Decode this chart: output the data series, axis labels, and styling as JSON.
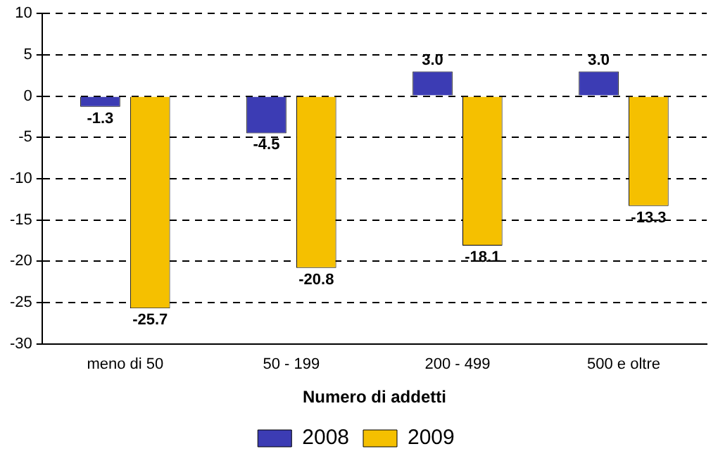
{
  "chart_data": {
    "type": "bar",
    "xlabel": "Numero di addetti",
    "categories": [
      "meno di 50",
      "50 - 199",
      "200 - 499",
      "500 e oltre"
    ],
    "series": [
      {
        "name": "2008",
        "color": "#3c3cb4",
        "values": [
          -1.3,
          -4.5,
          3.0,
          3.0
        ],
        "value_labels": [
          "-1.3",
          "-4.5",
          "3.0",
          "3.0"
        ]
      },
      {
        "name": "2009",
        "color": "#f5c000",
        "values": [
          -25.7,
          -20.8,
          -18.1,
          -13.3
        ],
        "value_labels": [
          "-25.7",
          "-20.8",
          "-18.1",
          "-13.3"
        ]
      }
    ],
    "ylim": [
      -30,
      10
    ],
    "yticks": [
      -30,
      -25,
      -20,
      -15,
      -10,
      -5,
      0,
      5,
      10
    ],
    "grid": "y",
    "legend": "bottom"
  }
}
